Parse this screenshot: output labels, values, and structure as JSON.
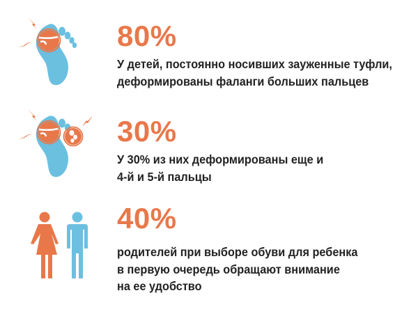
{
  "colors": {
    "accent": "#e8784a",
    "secondary": "#6bc0e0",
    "text": "#222222"
  },
  "stats": [
    {
      "value": "80%",
      "icon": "foot-big-toe-pain-icon",
      "lines": [
        "У детей, постоянно носивших зауженные туфли,",
        "деформированы фаланги больших пальцев"
      ]
    },
    {
      "value": "30%",
      "icon": "foot-toes-pain-icon",
      "lines": [
        "У 30% из них деформированы еще и",
        "4-й и 5-й пальцы"
      ]
    },
    {
      "value": "40%",
      "icon": "parents-icon",
      "lines": [
        "родителей при выборе обуви для ребенка",
        "в первую очередь обращают внимание",
        "на ее удобство"
      ]
    }
  ]
}
